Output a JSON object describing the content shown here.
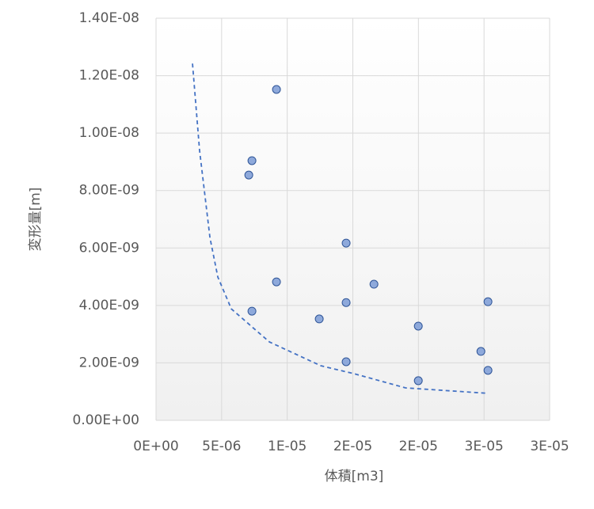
{
  "chart_data": {
    "type": "scatter",
    "x_label": "体積[m3]",
    "y_label": "変形量[m]",
    "xlim": [
      0,
      3e-05
    ],
    "ylim": [
      0,
      1.4e-08
    ],
    "xticks": [
      {
        "value": 0,
        "label": "0E+00"
      },
      {
        "value": 5e-06,
        "label": "5E-06"
      },
      {
        "value": 1e-05,
        "label": "1E-05"
      },
      {
        "value": 1.5e-05,
        "label": "2E-05"
      },
      {
        "value": 2e-05,
        "label": "2E-05"
      },
      {
        "value": 2.5e-05,
        "label": "3E-05"
      },
      {
        "value": 3e-05,
        "label": "3E-05"
      }
    ],
    "yticks": [
      {
        "value": 0,
        "label": "0.00E+00"
      },
      {
        "value": 2e-09,
        "label": "2.00E-09"
      },
      {
        "value": 4e-09,
        "label": "4.00E-09"
      },
      {
        "value": 6e-09,
        "label": "6.00E-09"
      },
      {
        "value": 8e-09,
        "label": "8.00E-09"
      },
      {
        "value": 1e-08,
        "label": "1.00E-08"
      },
      {
        "value": 1.2e-08,
        "label": "1.20E-08"
      },
      {
        "value": 1.4e-08,
        "label": "1.40E-08"
      }
    ],
    "grid": true,
    "series": [
      {
        "color": "#8ea9db",
        "x": [
          9.18e-06,
          7.31e-06,
          7.07e-06,
          1.449e-05,
          9.18e-06,
          1.661e-05,
          1.449e-05,
          2.53e-05,
          7.31e-06,
          1.244e-05,
          1.999e-05,
          2.476e-05,
          1.449e-05,
          2.53e-05,
          1.999e-05
        ],
        "values": [
          1.152e-08,
          9.04e-09,
          8.54e-09,
          6.17e-09,
          4.82e-09,
          4.74e-09,
          4.1e-09,
          4.13e-09,
          3.8e-09,
          3.53e-09,
          3.28e-09,
          2.4e-09,
          2.04e-09,
          1.74e-09,
          1.38e-09
        ]
      }
    ],
    "trendline": {
      "color": "#4472c4",
      "dashed": true,
      "x": [
        2.78e-06,
        3.32e-06,
        4.11e-06,
        4.71e-06,
        5.74e-06,
        8.64e-06,
        1.256e-05,
        1.504e-05,
        1.902e-05,
        2.53e-05
      ],
      "values": [
        1.242e-08,
        9.39e-09,
        6.36e-09,
        4.99e-09,
        3.88e-09,
        2.73e-09,
        1.9e-09,
        1.63e-09,
        1.13e-09,
        9.4e-10
      ]
    }
  }
}
